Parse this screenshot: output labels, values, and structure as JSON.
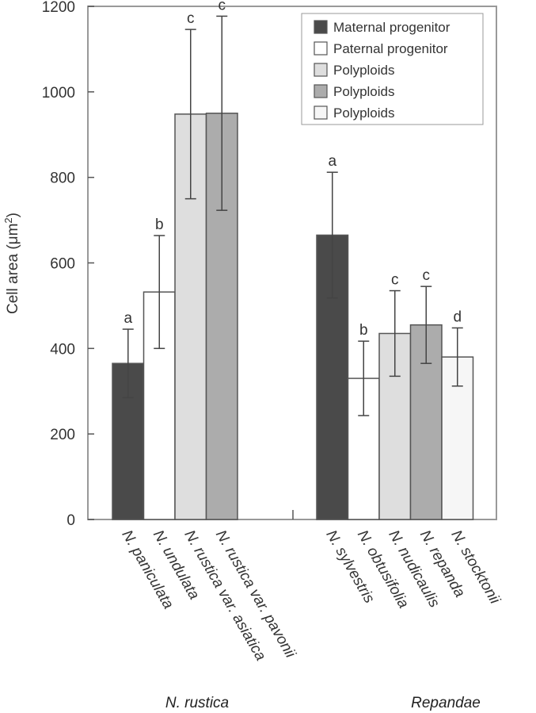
{
  "chart_data": {
    "type": "bar",
    "ylabel": "Cell area (μm",
    "ylabel_sup": "2",
    "ylabel_close": ")",
    "ylim": [
      0,
      1200
    ],
    "yticks": [
      0,
      200,
      400,
      600,
      800,
      1000,
      1200
    ],
    "grid": false,
    "legend_position": "top-right",
    "legend": [
      {
        "label": "Maternal progenitor",
        "color": "#4a4a4a"
      },
      {
        "label": "Paternal progenitor",
        "color": "#ffffff"
      },
      {
        "label": "Polyploids",
        "color": "#dedede"
      },
      {
        "label": "Polyploids",
        "color": "#acacac"
      },
      {
        "label": "Polyploids",
        "color": "#f6f6f6"
      }
    ],
    "groups": [
      {
        "name": "N. rustica",
        "bars": [
          {
            "category": "N. paniculata",
            "value": 365,
            "error": 80,
            "letter": "a",
            "color": "#4a4a4a"
          },
          {
            "category": "N. undulata",
            "value": 532,
            "error": 132,
            "letter": "b",
            "color": "#ffffff"
          },
          {
            "category": "N. rustica var. asiatica",
            "value": 948,
            "error": 198,
            "letter": "c",
            "color": "#dedede"
          },
          {
            "category": "N. rustica var. pavonii",
            "value": 950,
            "error": 227,
            "letter": "c",
            "color": "#acacac"
          }
        ]
      },
      {
        "name": "Repandae",
        "bars": [
          {
            "category": "N. sylvestris",
            "value": 665,
            "error": 147,
            "letter": "a",
            "color": "#4a4a4a"
          },
          {
            "category": "N. obtusifolia",
            "value": 330,
            "error": 87,
            "letter": "b",
            "color": "#ffffff"
          },
          {
            "category": "N. nudicaulis",
            "value": 435,
            "error": 100,
            "letter": "c",
            "color": "#dedede"
          },
          {
            "category": "N. repanda",
            "value": 455,
            "error": 90,
            "letter": "c",
            "color": "#acacac"
          },
          {
            "category": "N. stocktonii",
            "value": 380,
            "error": 68,
            "letter": "d",
            "color": "#f6f6f6"
          }
        ]
      }
    ]
  }
}
